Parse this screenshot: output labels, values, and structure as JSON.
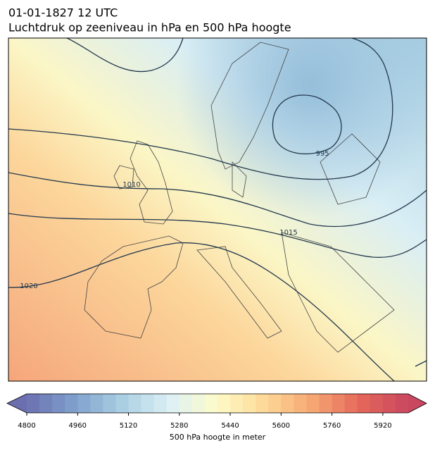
{
  "header": {
    "title_line1": "01-01-1827 12 UTC",
    "title_line2": "Luchtdruk op zeeniveau in hPa en 500 hPa hoogte"
  },
  "map": {
    "isobar_labels": [
      "995",
      "1010",
      "1015",
      "1020"
    ]
  },
  "colorbar": {
    "label": "500 hPa hoogte in meter",
    "range": [
      4800,
      6000
    ],
    "ticks": [
      4800,
      4960,
      5120,
      5280,
      5440,
      5600,
      5760,
      5920
    ],
    "colors": [
      "#6b6fb0",
      "#7fa0cc",
      "#aacfe3",
      "#ddf0f5",
      "#fdfbc8",
      "#fdd897",
      "#f6a672",
      "#e4665a",
      "#c9475f"
    ]
  }
}
